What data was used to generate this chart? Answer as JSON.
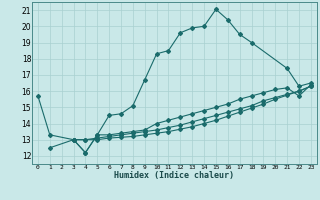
{
  "xlabel": "Humidex (Indice chaleur)",
  "xlim": [
    -0.5,
    23.5
  ],
  "ylim": [
    11.5,
    21.5
  ],
  "xticks": [
    0,
    1,
    2,
    3,
    4,
    5,
    6,
    7,
    8,
    9,
    10,
    11,
    12,
    13,
    14,
    15,
    16,
    17,
    18,
    19,
    20,
    21,
    22,
    23
  ],
  "yticks": [
    12,
    13,
    14,
    15,
    16,
    17,
    18,
    19,
    20,
    21
  ],
  "bg_color": "#c9e8e8",
  "grid_color": "#a8d0d0",
  "line_color": "#1a6b6b",
  "line1_x": [
    0,
    1,
    3,
    4,
    5,
    6,
    7,
    8,
    9,
    10,
    11,
    12,
    13,
    14,
    15,
    16,
    17,
    18,
    21,
    22,
    23
  ],
  "line1_y": [
    15.7,
    13.3,
    13.0,
    12.2,
    13.3,
    14.5,
    14.6,
    15.1,
    16.7,
    18.3,
    18.5,
    19.6,
    19.9,
    20.0,
    21.05,
    20.4,
    19.5,
    19.0,
    17.4,
    16.3,
    16.5
  ],
  "line2_x": [
    1,
    3,
    4,
    5,
    6,
    7,
    8,
    9,
    10,
    11,
    12,
    13,
    14,
    15,
    16,
    17,
    18,
    19,
    20,
    21,
    22,
    23
  ],
  "line2_y": [
    12.5,
    13.0,
    12.2,
    13.3,
    13.3,
    13.4,
    13.5,
    13.6,
    14.0,
    14.2,
    14.4,
    14.6,
    14.8,
    15.0,
    15.2,
    15.5,
    15.7,
    15.9,
    16.1,
    16.2,
    15.7,
    16.4
  ],
  "line3_x": [
    3,
    4,
    5,
    6,
    7,
    8,
    9,
    10,
    11,
    12,
    13,
    14,
    15,
    16,
    17,
    18,
    19,
    20,
    21,
    22,
    23
  ],
  "line3_y": [
    13.0,
    13.0,
    13.1,
    13.2,
    13.3,
    13.4,
    13.5,
    13.6,
    13.75,
    13.9,
    14.1,
    14.3,
    14.5,
    14.7,
    14.9,
    15.1,
    15.4,
    15.6,
    15.8,
    16.0,
    16.3
  ],
  "line4_x": [
    3,
    4,
    5,
    6,
    7,
    8,
    9,
    10,
    11,
    12,
    13,
    14,
    15,
    16,
    17,
    18,
    19,
    20,
    21,
    22,
    23
  ],
  "line4_y": [
    13.0,
    13.0,
    13.0,
    13.1,
    13.15,
    13.2,
    13.3,
    13.4,
    13.5,
    13.65,
    13.8,
    14.0,
    14.2,
    14.45,
    14.7,
    14.95,
    15.2,
    15.5,
    15.75,
    16.0,
    16.3
  ]
}
